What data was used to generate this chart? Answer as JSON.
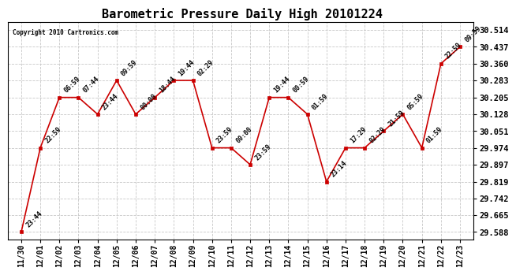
{
  "title": "Barometric Pressure Daily High 20101224",
  "copyright": "Copyright 2010 Cartronics.com",
  "background_color": "#ffffff",
  "plot_bg_color": "#ffffff",
  "grid_color": "#c8c8c8",
  "line_color": "#cc0000",
  "marker_color": "#cc0000",
  "text_color": "#000000",
  "x_labels": [
    "11/30",
    "12/01",
    "12/02",
    "12/03",
    "12/04",
    "12/05",
    "12/06",
    "12/07",
    "12/08",
    "12/09",
    "12/10",
    "12/11",
    "12/12",
    "12/13",
    "12/14",
    "12/15",
    "12/16",
    "12/17",
    "12/18",
    "12/19",
    "12/20",
    "12/21",
    "12/22",
    "12/23"
  ],
  "x_values": [
    0,
    1,
    2,
    3,
    4,
    5,
    6,
    7,
    8,
    9,
    10,
    11,
    12,
    13,
    14,
    15,
    16,
    17,
    18,
    19,
    20,
    21,
    22,
    23
  ],
  "y_values": [
    29.588,
    29.974,
    30.205,
    30.205,
    30.128,
    30.283,
    30.128,
    30.205,
    30.283,
    30.283,
    29.974,
    29.974,
    29.897,
    30.205,
    30.205,
    30.128,
    29.819,
    29.974,
    29.974,
    30.051,
    30.128,
    29.974,
    30.36,
    30.437
  ],
  "annotations": [
    "23:44",
    "22:59",
    "06:59",
    "07:44",
    "23:44",
    "09:59",
    "00:00",
    "18:44",
    "19:44",
    "02:29",
    "23:59",
    "00:00",
    "23:59",
    "19:44",
    "00:59",
    "01:59",
    "23:14",
    "17:29",
    "02:29",
    "21:59",
    "05:59",
    "01:59",
    "22:59",
    "09:59"
  ],
  "ylim_min": 29.5534,
  "ylim_max": 30.5488,
  "yticks": [
    29.588,
    29.665,
    29.742,
    29.819,
    29.897,
    29.974,
    30.051,
    30.128,
    30.205,
    30.283,
    30.36,
    30.437,
    30.514
  ],
  "title_fontsize": 11,
  "annot_fontsize": 6,
  "xlabel_fontsize": 7,
  "ylabel_fontsize": 7.5
}
